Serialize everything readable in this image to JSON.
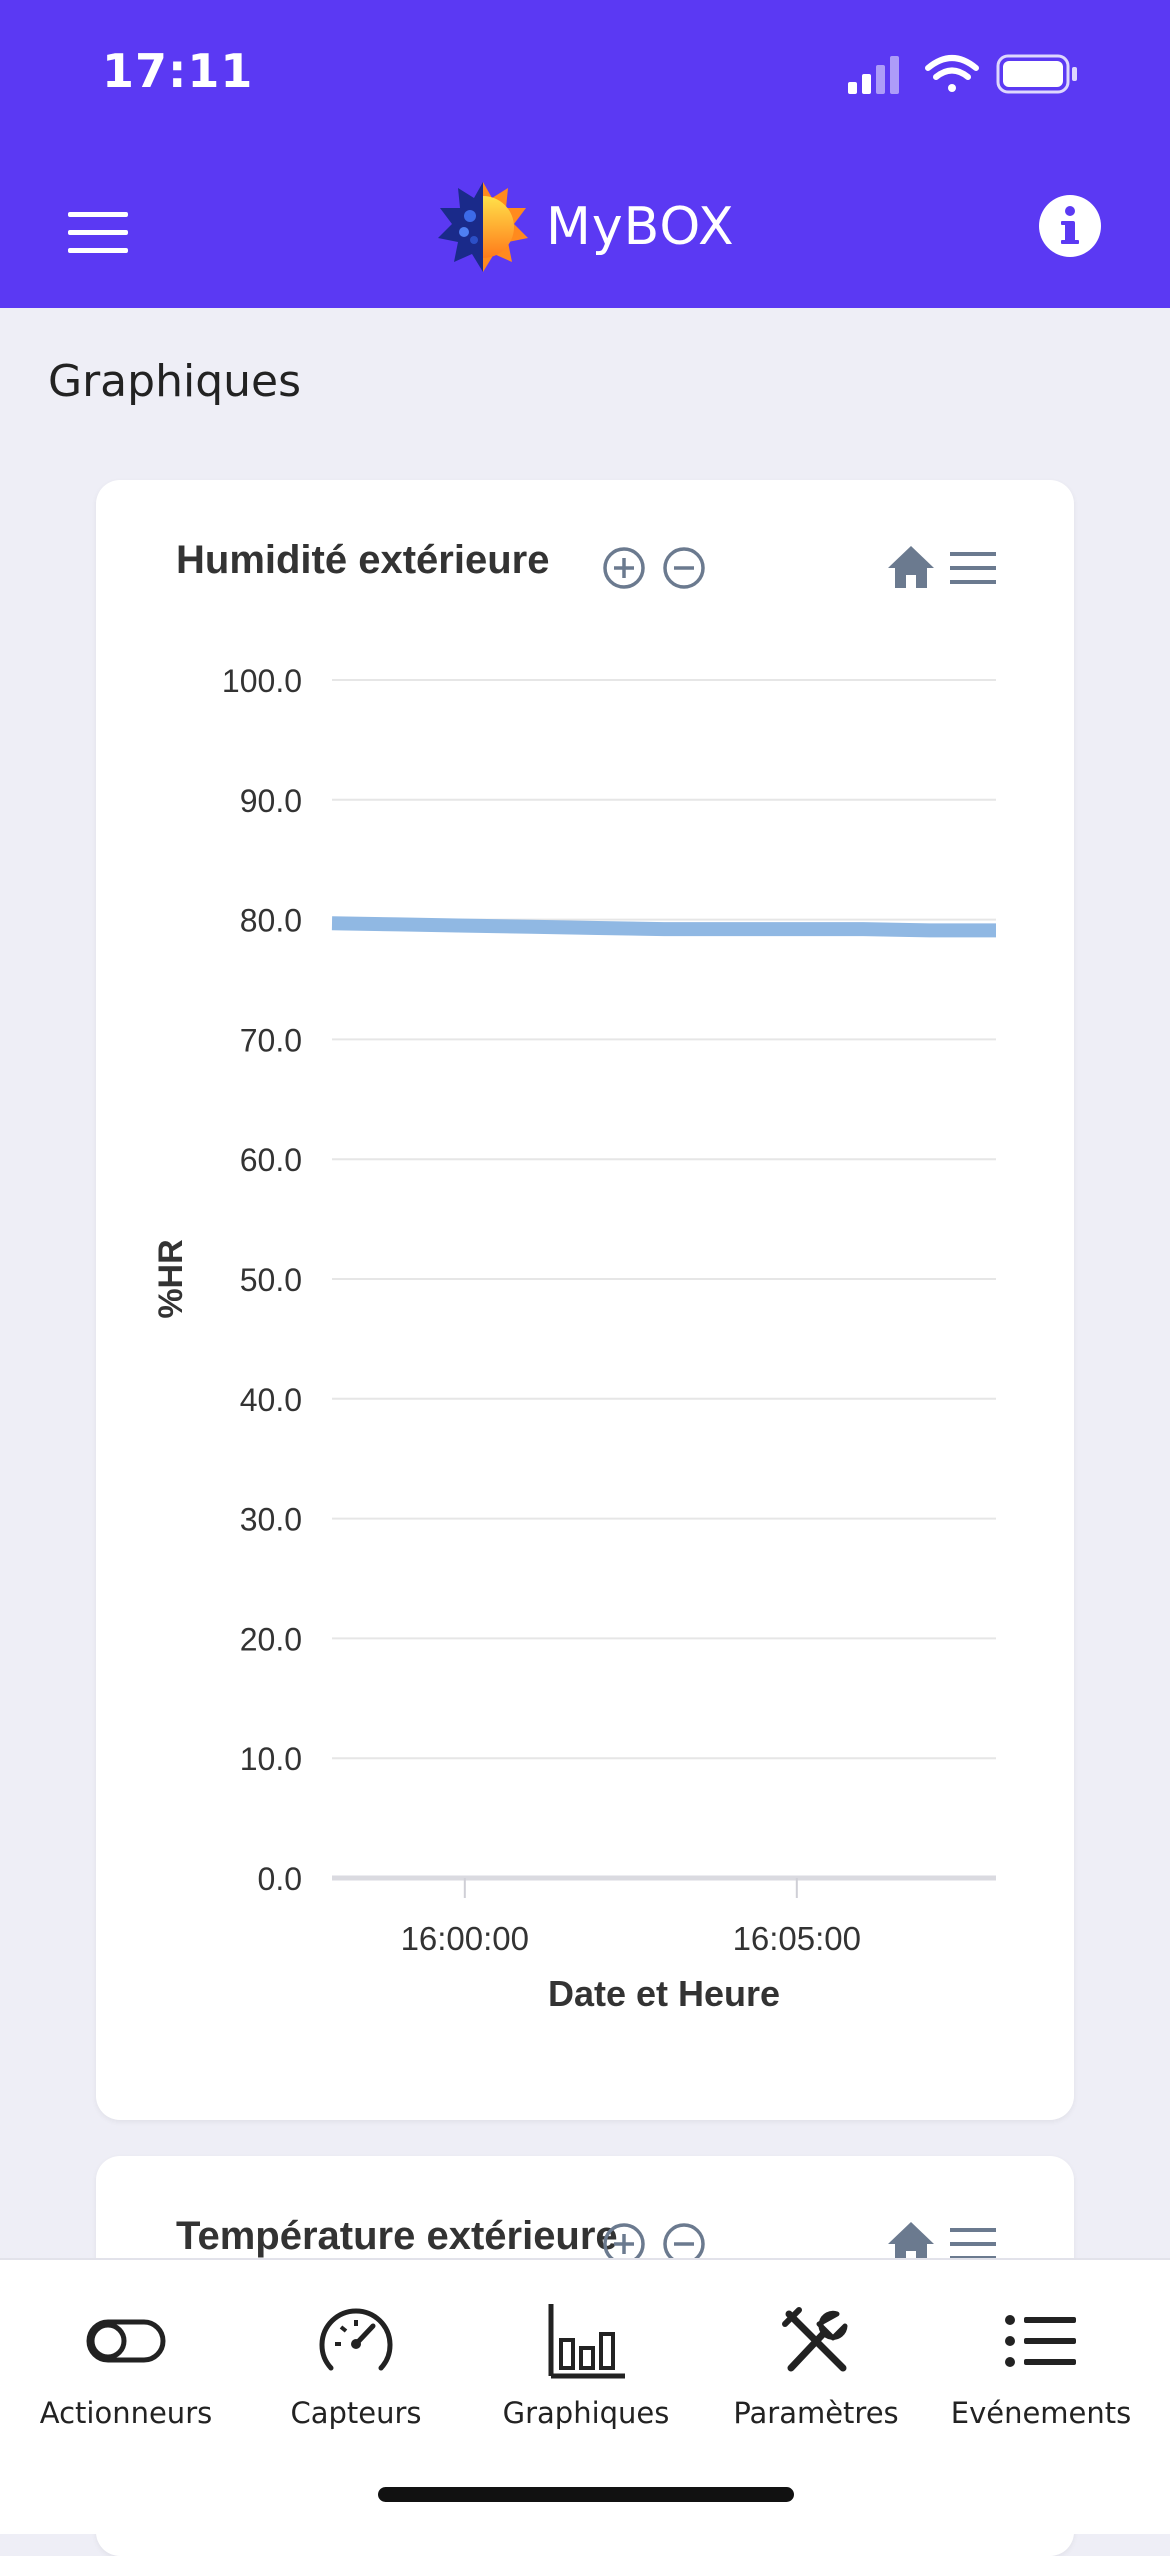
{
  "status_bar": {
    "time": "17:11"
  },
  "header": {
    "app_name": "MyBOX"
  },
  "page": {
    "title": "Graphiques"
  },
  "charts": [
    {
      "title": "Humidité extérieure"
    },
    {
      "title": "Température extérieure"
    }
  ],
  "chart_data": [
    {
      "type": "line",
      "title": "Humidité extérieure",
      "xlabel": "Date et Heure",
      "ylabel": "%HR",
      "ylim": [
        0,
        100
      ],
      "yticks": [
        "0.0",
        "10.0",
        "20.0",
        "30.0",
        "40.0",
        "50.0",
        "60.0",
        "70.0",
        "80.0",
        "90.0",
        "100.0"
      ],
      "xticks": [
        "16:00:00",
        "16:05:00"
      ],
      "x": [
        "15:58:00",
        "15:59:00",
        "16:00:00",
        "16:01:00",
        "16:02:00",
        "16:03:00",
        "16:04:00",
        "16:05:00",
        "16:06:00",
        "16:07:00",
        "16:08:00"
      ],
      "series": [
        {
          "values": [
            79.7,
            79.6,
            79.5,
            79.4,
            79.3,
            79.2,
            79.2,
            79.2,
            79.2,
            79.1,
            79.1
          ],
          "color": "#90b8e3"
        }
      ],
      "grid": true,
      "legend": "none"
    }
  ],
  "bottom_nav": [
    {
      "label": "Actionneurs",
      "icon": "toggle-icon"
    },
    {
      "label": "Capteurs",
      "icon": "gauge-icon"
    },
    {
      "label": "Graphiques",
      "icon": "bar-chart-icon"
    },
    {
      "label": "Paramètres",
      "icon": "tools-icon"
    },
    {
      "label": "Evénements",
      "icon": "list-icon"
    }
  ],
  "colors": {
    "accent": "#5b39f3",
    "series": "#90b8e3",
    "tool_icon": "#6b7a8f"
  }
}
